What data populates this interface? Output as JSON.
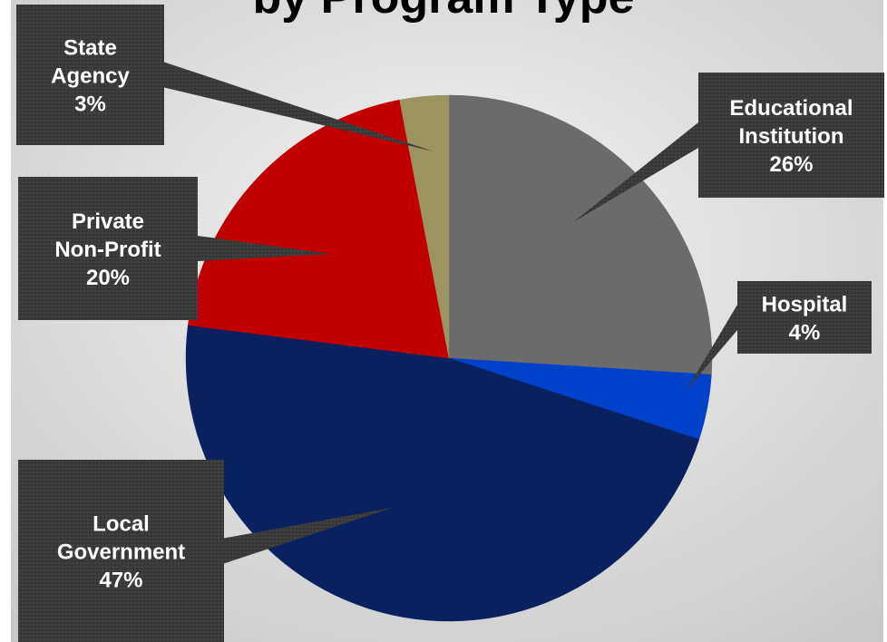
{
  "chart_data": {
    "type": "pie",
    "title": "by Program Type",
    "unit": "%",
    "slices": [
      {
        "label": "Educational Institution",
        "value": 26,
        "value_label": "26%",
        "color": "#6b6b6b",
        "label_lines": [
          "Educational",
          "Institution"
        ]
      },
      {
        "label": "Hospital",
        "value": 4,
        "value_label": "4%",
        "color": "#0041c9",
        "label_lines": [
          "Hospital"
        ]
      },
      {
        "label": "Local Government",
        "value": 47,
        "value_label": "47%",
        "color": "#0a2160",
        "label_lines": [
          "Local",
          "Government"
        ]
      },
      {
        "label": "Private Non-Profit",
        "value": 20,
        "value_label": "20%",
        "color": "#c00000",
        "label_lines": [
          "Private",
          "Non-Profit"
        ]
      },
      {
        "label": "State Agency",
        "value": 3,
        "value_label": "3%",
        "color": "#9c9460",
        "label_lines": [
          "State",
          "Agency"
        ]
      }
    ],
    "start_angle_deg": 0,
    "direction": "clockwise",
    "legend": "none",
    "label_style": "callout"
  },
  "colors": {
    "background_light": "#f4f4f4",
    "background_dark": "#c9c9c9",
    "callout_fill": "#3a3a3a",
    "callout_text": "#ffffff"
  }
}
